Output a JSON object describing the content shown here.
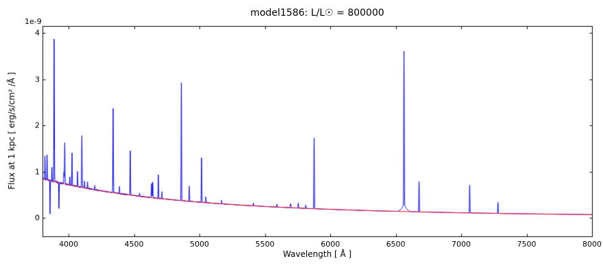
{
  "chart_data": {
    "type": "line",
    "title": "model1586: L/L☉ = 800000",
    "xlabel": "Wavelength [ Å ]",
    "ylabel": "Flux at 1 kpc [ erg/s/cm² /Å ]",
    "y_offset_label": "1e-9",
    "xlim": [
      3800,
      8000
    ],
    "ylim": [
      -0.4,
      4.15
    ],
    "x_ticks": [
      4000,
      4500,
      5000,
      5500,
      6000,
      6500,
      7000,
      7500,
      8000
    ],
    "y_ticks": [
      0,
      1,
      2,
      3,
      4
    ],
    "grid": false,
    "legend": null,
    "series": [
      {
        "name": "observed-spectrum",
        "color": "#0000ff",
        "line_width": 1
      },
      {
        "name": "continuum-fit",
        "color": "#ff0000",
        "line_width": 1
      }
    ],
    "continuum_x_start": 3800,
    "continuum_x_step": 100,
    "continuum_values": [
      0.85,
      0.779,
      0.716,
      0.659,
      0.608,
      0.562,
      0.52,
      0.482,
      0.448,
      0.417,
      0.389,
      0.363,
      0.339,
      0.317,
      0.297,
      0.279,
      0.262,
      0.246,
      0.232,
      0.219,
      0.206,
      0.195,
      0.184,
      0.174,
      0.165,
      0.156,
      0.148,
      0.141,
      0.134,
      0.127,
      0.121,
      0.115,
      0.11,
      0.105,
      0.1,
      0.095,
      0.091,
      0.087,
      0.083,
      0.08,
      0.076,
      0.073,
      0.07
    ],
    "emission_lines": [
      [
        3819,
        0.5,
        1.4
      ],
      [
        3835,
        0.55,
        1.4
      ],
      [
        3858,
        -0.72,
        1.4
      ],
      [
        3872,
        0.28,
        1.3
      ],
      [
        3889,
        3.08,
        1.7
      ],
      [
        3926,
        -0.58,
        1.4
      ],
      [
        3964,
        0.25,
        1.4
      ],
      [
        3970,
        0.88,
        1.7
      ],
      [
        4009,
        0.16,
        1.4
      ],
      [
        4026,
        0.7,
        1.6
      ],
      [
        4068,
        0.32,
        1.4
      ],
      [
        4101,
        1.12,
        1.7
      ],
      [
        4121,
        0.14,
        1.4
      ],
      [
        4144,
        0.13,
        1.4
      ],
      [
        4200,
        0.1,
        1.4
      ],
      [
        4340,
        1.82,
        1.7
      ],
      [
        4388,
        0.15,
        1.4
      ],
      [
        4471,
        0.96,
        1.6
      ],
      [
        4542,
        0.07,
        1.4
      ],
      [
        4634,
        0.3,
        1.7
      ],
      [
        4642,
        0.34,
        1.7
      ],
      [
        4686,
        0.52,
        1.6
      ],
      [
        4713,
        0.16,
        1.4
      ],
      [
        4861,
        2.55,
        1.7
      ],
      [
        4922,
        0.33,
        1.5
      ],
      [
        5016,
        0.96,
        1.6
      ],
      [
        5048,
        0.13,
        1.4
      ],
      [
        5169,
        0.08,
        1.4
      ],
      [
        5412,
        0.06,
        1.4
      ],
      [
        5592,
        0.06,
        1.4
      ],
      [
        5696,
        0.09,
        2.5
      ],
      [
        5755,
        0.11,
        2.0
      ],
      [
        5812,
        0.07,
        2.0
      ],
      [
        5876,
        1.53,
        1.7
      ],
      [
        6563,
        3.35,
        1.9
      ],
      [
        6563,
        0.12,
        18
      ],
      [
        6678,
        0.66,
        1.7
      ],
      [
        7065,
        0.6,
        1.7
      ],
      [
        7281,
        0.24,
        1.7
      ]
    ],
    "noise": {
      "seed": 123456,
      "base_amp": 0.032,
      "decay_scale": 900,
      "floor": 0.003
    }
  }
}
